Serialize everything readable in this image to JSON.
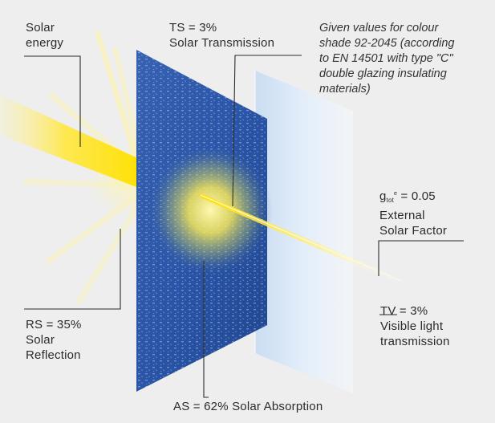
{
  "labels": {
    "solar_energy": [
      "Solar",
      "energy"
    ],
    "ts": [
      "TS = 3%",
      "Solar Transmission"
    ],
    "rs": [
      "RS = 35%",
      "Solar",
      "Reflection"
    ],
    "as": "AS = 62% Solar Absorption",
    "g": {
      "base": "g",
      "sub": "tot",
      "sup": "e",
      "value": " = 0.05",
      "lines": [
        "External",
        "Solar Factor"
      ]
    },
    "tv": [
      "TV = 3%",
      "Visible light",
      "transmission"
    ]
  },
  "note": [
    "Given values for colour",
    "shade 92-2045 (according",
    "to EN 14501 with type \"C\"",
    "double glazing insulating",
    "materials)"
  ],
  "colors": {
    "background": "#eeeeee",
    "fabric_blue": "#2a55a8",
    "beam_yellow": "#ffe84a",
    "leader_line": "#2b2b2b",
    "rear_pane": "#d6e6f8"
  }
}
